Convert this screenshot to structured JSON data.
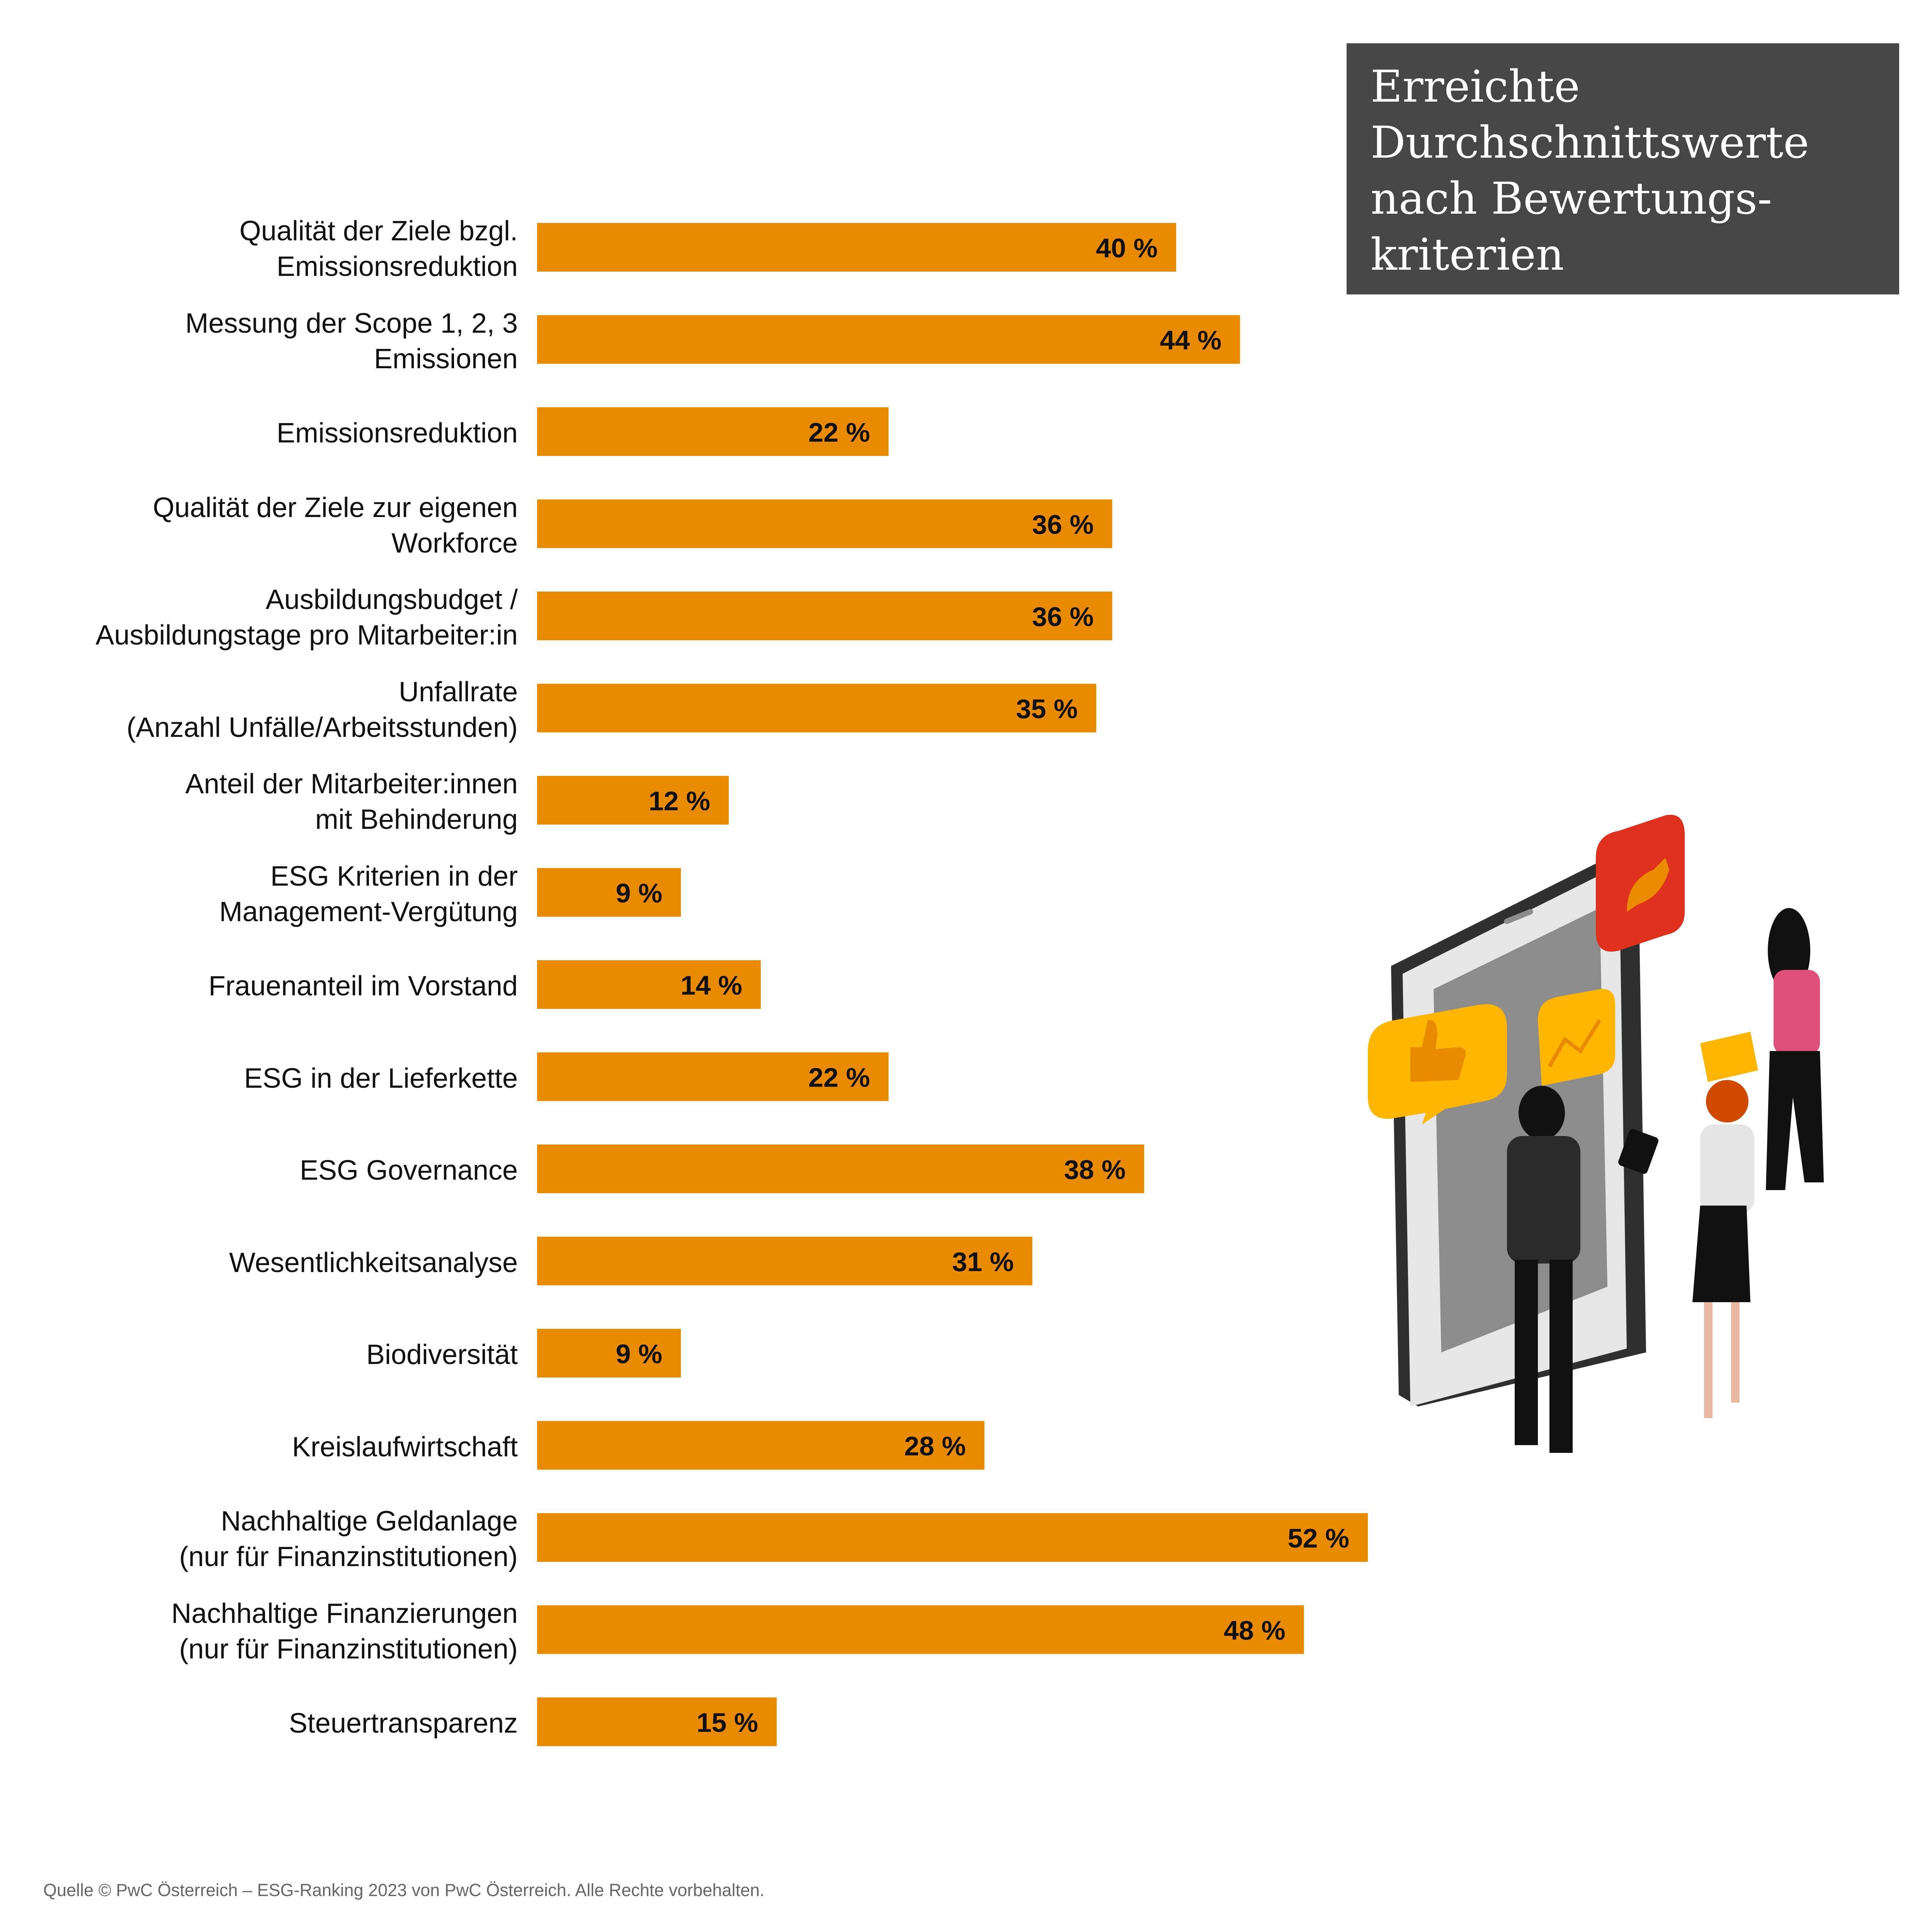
{
  "title": "Erreichte\nDurchschnittswerte\nnach Bewertungs-\nkriterien",
  "source": "Quelle © PwC Österreich – ESG-Ranking 2023 von PwC Österreich. Alle Rechte vorbehalten.",
  "colors": {
    "bar": "#E98B00",
    "title_bg": "#464646",
    "title_text": "#FFFFFF",
    "bar_label": "#111111"
  },
  "chart_data": {
    "type": "bar",
    "orientation": "horizontal",
    "categories": [
      "Qualität der Ziele bzgl.\nEmissionsreduktion",
      "Messung der Scope 1, 2, 3\nEmissionen",
      "Emissionsreduktion",
      "Qualität der Ziele zur eigenen\nWorkforce",
      "Ausbildungsbudget /\nAusbildungstage pro Mitarbeiter:in",
      "Unfallrate\n(Anzahl Unfälle/Arbeitsstunden)",
      "Anteil der Mitarbeiter:innen\nmit Behinderung",
      "ESG Kriterien in der\nManagement-Vergütung",
      "Frauenanteil im Vorstand",
      "ESG in der Lieferkette",
      "ESG Governance",
      "Wesentlichkeitsanalyse",
      "Biodiversität",
      "Kreislaufwirtschaft",
      "Nachhaltige Geldanlage\n(nur für Finanzinstitutionen)",
      "Nachhaltige Finanzierungen\n(nur für Finanzinstitutionen)",
      "Steuertransparenz"
    ],
    "values": [
      40,
      44,
      22,
      36,
      36,
      35,
      12,
      9,
      14,
      22,
      38,
      31,
      9,
      28,
      52,
      48,
      15
    ],
    "value_labels": [
      "40 %",
      "44 %",
      "22 %",
      "36 %",
      "36 %",
      "35 %",
      "12 %",
      "9 %",
      "14 %",
      "22 %",
      "38 %",
      "31 %",
      "9 %",
      "28 %",
      "52 %",
      "48 %",
      "15 %"
    ],
    "unit": "%",
    "xlim": [
      0,
      52
    ],
    "grid": false,
    "legend": "none",
    "title": "Erreichte Durchschnittswerte nach Bewertungskriterien",
    "xlabel": "",
    "ylabel": ""
  }
}
